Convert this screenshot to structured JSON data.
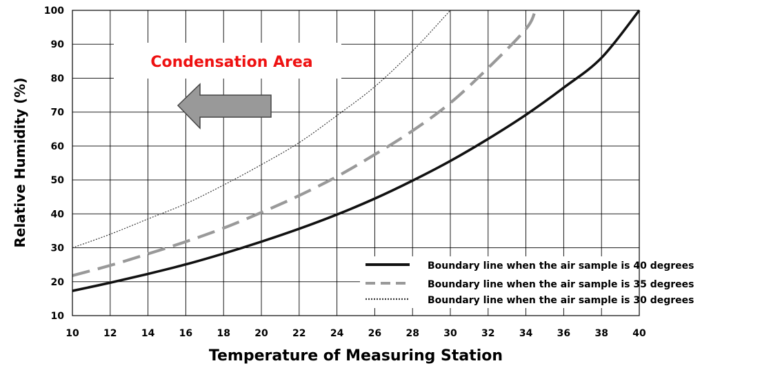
{
  "chart_data": {
    "type": "line",
    "title": "",
    "xlabel": "Temperature of Measuring Station",
    "ylabel": "Relative Humidity (%)",
    "xlim": [
      10,
      40
    ],
    "ylim": [
      10,
      100
    ],
    "x_ticks": [
      "10",
      "12",
      "14",
      "16",
      "18",
      "20",
      "22",
      "24",
      "26",
      "28",
      "30",
      "32",
      "34",
      "36",
      "38",
      "40"
    ],
    "y_ticks": [
      "10",
      "20",
      "30",
      "40",
      "50",
      "60",
      "70",
      "80",
      "90",
      "100"
    ],
    "grid": true,
    "legend_position": "bottom-right",
    "series": [
      {
        "name": "Boundary line when the air sample is 40 degrees",
        "style": "solid",
        "color": "#111111",
        "x": [
          10,
          12,
          14,
          16,
          18,
          20,
          22,
          24,
          26,
          28,
          30,
          32,
          34,
          36,
          38,
          40
        ],
        "y": [
          17.3,
          19.7,
          22.3,
          25.1,
          28.3,
          31.8,
          35.6,
          39.8,
          44.5,
          49.8,
          55.6,
          62.1,
          69.2,
          77.2,
          86.0,
          100.0
        ]
      },
      {
        "name": "Boundary line when the air sample is 35 degrees",
        "style": "dashed",
        "color": "#999999",
        "x": [
          10,
          12,
          14,
          16,
          18,
          20,
          22,
          24,
          26,
          28,
          30,
          32,
          34,
          34.5
        ],
        "y": [
          21.8,
          24.8,
          28.2,
          31.8,
          35.8,
          40.4,
          45.4,
          51.0,
          57.5,
          64.5,
          72.7,
          83.0,
          94.5,
          100.0
        ]
      },
      {
        "name": "Boundary line when the air sample is 30 degrees",
        "style": "dotted",
        "color": "#333333",
        "x": [
          10,
          12,
          14,
          16,
          18,
          20,
          22,
          24,
          26,
          28,
          30
        ],
        "y": [
          30.0,
          34.0,
          38.5,
          43.0,
          48.5,
          54.5,
          61.0,
          69.0,
          77.5,
          88.0,
          100.0
        ]
      }
    ],
    "annotations": [
      {
        "text": "Condensation Area",
        "color": "#ee1111"
      }
    ]
  }
}
